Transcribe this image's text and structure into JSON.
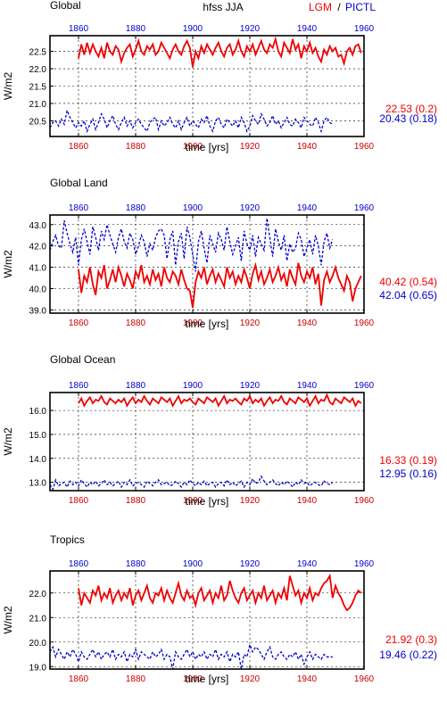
{
  "header": {
    "title": "hfss JJA",
    "legend_lgm": "LGM",
    "legend_sep": "/",
    "legend_pictl": "PICTL"
  },
  "colors": {
    "lgm": "#ee0000",
    "pictl": "#0000cc",
    "axis": "#000000",
    "grid": "#000000"
  },
  "chart_data": [
    {
      "type": "line",
      "panel_title": "Global",
      "ylabel": "W/m2",
      "xlabel": "time [yrs]",
      "xlim": [
        1850,
        1960
      ],
      "xticks": [
        1860,
        1880,
        1900,
        1920,
        1940,
        1960
      ],
      "top_xticks": [
        1860,
        1880,
        1900,
        1920,
        1940,
        1960
      ],
      "ylim": [
        20.05,
        22.95
      ],
      "yticks": [
        "20.5",
        "21.0",
        "21.5",
        "22.0",
        "22.5"
      ],
      "grid": true,
      "series": [
        {
          "name": "LGM",
          "color": "#ee0000",
          "dash": "none",
          "x_start": 1860,
          "stats": "22.53 (0.2)",
          "values": [
            22.3,
            22.7,
            22.4,
            22.75,
            22.45,
            22.7,
            22.5,
            22.35,
            22.6,
            22.3,
            22.75,
            22.5,
            22.4,
            22.65,
            22.55,
            22.2,
            22.45,
            22.6,
            22.7,
            22.35,
            22.55,
            22.8,
            22.5,
            22.4,
            22.65,
            22.55,
            22.7,
            22.4,
            22.5,
            22.75,
            22.6,
            22.45,
            22.3,
            22.55,
            22.7,
            22.5,
            22.4,
            22.65,
            22.8,
            22.6,
            22.05,
            22.5,
            22.3,
            22.65,
            22.45,
            22.7,
            22.55,
            22.4,
            22.6,
            22.75,
            22.5,
            22.35,
            22.6,
            22.7,
            22.4,
            22.55,
            22.8,
            22.5,
            22.35,
            22.65,
            22.5,
            22.7,
            22.4,
            22.6,
            22.8,
            22.55,
            22.45,
            22.7,
            22.6,
            22.85,
            22.5,
            22.35,
            22.75,
            22.6,
            22.45,
            22.85,
            22.55,
            22.7,
            22.3,
            22.65,
            22.5,
            22.75,
            22.45,
            22.6,
            22.35,
            22.2,
            22.55,
            22.4,
            22.65,
            22.5,
            22.6,
            22.35,
            22.4,
            22.15,
            22.5,
            22.6,
            22.4,
            22.65,
            22.7,
            22.45
          ]
        },
        {
          "name": "PICTL",
          "color": "#0000cc",
          "dash": "3,2",
          "x_start": 1850,
          "stats": "20.43 (0.18)",
          "values": [
            20.3,
            20.45,
            20.5,
            20.35,
            20.55,
            20.4,
            20.8,
            20.6,
            20.45,
            20.3,
            20.45,
            20.35,
            20.5,
            20.2,
            20.4,
            20.55,
            20.25,
            20.45,
            20.7,
            20.55,
            20.3,
            20.5,
            20.65,
            20.4,
            20.25,
            20.45,
            20.6,
            20.35,
            20.5,
            20.3,
            20.45,
            20.55,
            20.4,
            20.3,
            20.2,
            20.45,
            20.55,
            20.6,
            20.25,
            20.5,
            20.35,
            20.45,
            20.6,
            20.4,
            20.3,
            20.5,
            20.25,
            20.45,
            20.6,
            20.35,
            20.5,
            20.4,
            20.3,
            20.55,
            20.45,
            20.65,
            20.35,
            20.2,
            20.5,
            20.6,
            20.4,
            20.3,
            20.55,
            20.45,
            20.35,
            20.5,
            20.3,
            20.6,
            20.45,
            20.2,
            20.35,
            20.65,
            20.5,
            20.4,
            20.7,
            20.55,
            20.35,
            20.45,
            20.65,
            20.4,
            20.5,
            20.3,
            20.45,
            20.6,
            20.4,
            20.35,
            20.55,
            20.45,
            20.3,
            20.6,
            20.5,
            20.4,
            20.35,
            20.6,
            20.45,
            20.2,
            20.5,
            20.6,
            20.45,
            20.4
          ]
        }
      ]
    },
    {
      "type": "line",
      "panel_title": "Global Land",
      "ylabel": "W/m2",
      "xlabel": "time [yrs]",
      "xlim": [
        1850,
        1960
      ],
      "xticks": [
        1860,
        1880,
        1900,
        1920,
        1940,
        1960
      ],
      "top_xticks": [
        1860,
        1880,
        1900,
        1920,
        1940,
        1960
      ],
      "ylim": [
        38.85,
        43.45
      ],
      "yticks": [
        "39.0",
        "40.0",
        "41.0",
        "42.0",
        "43.0"
      ],
      "grid": true,
      "series": [
        {
          "name": "LGM",
          "color": "#ee0000",
          "dash": "none",
          "x_start": 1860,
          "stats": "40.42 (0.54)",
          "values": [
            40.9,
            39.8,
            40.6,
            40.3,
            41.0,
            40.2,
            39.7,
            40.8,
            40.5,
            41.1,
            40.0,
            40.4,
            40.9,
            40.3,
            41.0,
            40.6,
            40.1,
            40.7,
            40.4,
            40.0,
            40.8,
            40.5,
            41.1,
            40.3,
            40.6,
            40.2,
            40.9,
            40.4,
            40.7,
            40.1,
            41.0,
            40.5,
            40.3,
            40.8,
            40.6,
            40.2,
            40.9,
            40.4,
            40.0,
            39.9,
            39.1,
            40.3,
            40.8,
            40.5,
            41.0,
            40.2,
            40.6,
            40.9,
            40.3,
            40.7,
            40.4,
            40.1,
            41.0,
            40.5,
            40.8,
            40.2,
            40.6,
            40.3,
            40.9,
            40.5,
            40.0,
            40.7,
            41.1,
            40.4,
            40.8,
            40.2,
            40.5,
            40.9,
            40.3,
            40.6,
            41.0,
            40.4,
            40.7,
            40.1,
            40.9,
            40.5,
            40.2,
            41.2,
            40.6,
            40.3,
            40.8,
            40.5,
            41.0,
            40.2,
            40.7,
            39.2,
            40.4,
            40.8,
            40.3,
            40.6,
            41.0,
            40.5,
            40.2,
            39.9,
            40.6,
            40.3,
            39.4,
            40.0,
            40.3,
            40.6
          ]
        },
        {
          "name": "PICTL",
          "color": "#0000cc",
          "dash": "3,2",
          "x_start": 1850,
          "stats": "42.04 (0.65)",
          "values": [
            41.8,
            42.2,
            42.5,
            42.0,
            41.9,
            43.2,
            42.6,
            42.1,
            41.7,
            42.4,
            41.1,
            42.3,
            42.8,
            42.2,
            41.6,
            42.9,
            42.4,
            41.8,
            42.7,
            42.3,
            43.0,
            42.5,
            42.1,
            41.7,
            42.4,
            42.8,
            42.2,
            41.9,
            42.6,
            42.3,
            41.6,
            42.0,
            42.5,
            42.2,
            41.5,
            42.1,
            41.8,
            42.4,
            42.7,
            42.8,
            42.5,
            41.4,
            42.3,
            42.7,
            41.1,
            42.2,
            42.6,
            41.4,
            42.9,
            42.4,
            41.6,
            40.8,
            42.2,
            42.7,
            41.9,
            41.2,
            42.5,
            42.1,
            41.7,
            42.6,
            42.3,
            41.8,
            42.9,
            42.2,
            41.6,
            42.0,
            42.4,
            41.3,
            42.7,
            42.1,
            41.8,
            42.5,
            41.5,
            42.4,
            42.1,
            41.8,
            43.3,
            42.4,
            41.5,
            42.8,
            42.2,
            41.8,
            42.5,
            41.3,
            42.1,
            41.7,
            41.9,
            42.6,
            42.3,
            41.5,
            41.9,
            42.3,
            41.6,
            42.5,
            42.0,
            41.1,
            42.2,
            42.6,
            41.9,
            42.3
          ]
        }
      ]
    },
    {
      "type": "line",
      "panel_title": "Global Ocean",
      "ylabel": "W/m2",
      "xlabel": "time [yrs]",
      "xlim": [
        1850,
        1960
      ],
      "xticks": [
        1860,
        1880,
        1900,
        1920,
        1940,
        1960
      ],
      "top_xticks": [
        1860,
        1880,
        1900,
        1920,
        1940,
        1960
      ],
      "ylim": [
        12.65,
        16.75
      ],
      "yticks": [
        "13.0",
        "14.0",
        "15.0",
        "16.0"
      ],
      "grid": true,
      "series": [
        {
          "name": "LGM",
          "color": "#ee0000",
          "dash": "none",
          "x_start": 1860,
          "stats": "16.33 (0.19)",
          "values": [
            16.3,
            16.5,
            16.2,
            16.4,
            16.55,
            16.3,
            16.45,
            16.4,
            16.6,
            16.35,
            16.25,
            16.5,
            16.4,
            16.3,
            16.45,
            16.35,
            16.5,
            16.2,
            16.4,
            16.55,
            16.3,
            16.45,
            16.35,
            16.6,
            16.4,
            16.25,
            16.5,
            16.4,
            16.3,
            16.55,
            16.45,
            16.35,
            16.5,
            16.2,
            16.4,
            16.6,
            16.3,
            16.45,
            16.4,
            16.5,
            16.35,
            16.25,
            16.5,
            16.4,
            16.3,
            16.55,
            16.45,
            16.35,
            16.5,
            16.2,
            16.4,
            16.6,
            16.3,
            16.45,
            16.4,
            16.5,
            16.35,
            16.25,
            16.5,
            16.4,
            16.6,
            16.3,
            16.45,
            16.35,
            16.5,
            16.2,
            16.4,
            16.55,
            16.3,
            16.45,
            16.4,
            16.6,
            16.35,
            16.25,
            16.5,
            16.4,
            16.3,
            16.55,
            16.45,
            16.35,
            16.5,
            16.2,
            16.4,
            16.6,
            16.3,
            16.45,
            16.4,
            16.65,
            16.35,
            16.25,
            16.5,
            16.4,
            16.3,
            16.55,
            16.45,
            16.35,
            16.5,
            16.2,
            16.4,
            16.3
          ]
        },
        {
          "name": "PICTL",
          "color": "#0000cc",
          "dash": "3,2",
          "x_start": 1850,
          "stats": "12.95 (0.16)",
          "values": [
            12.9,
            12.7,
            13.1,
            12.85,
            12.95,
            13.0,
            12.8,
            13.05,
            12.9,
            13.0,
            12.85,
            13.1,
            12.95,
            12.8,
            13.0,
            12.9,
            13.05,
            12.85,
            12.95,
            13.1,
            12.9,
            13.0,
            12.85,
            12.95,
            13.05,
            12.8,
            13.0,
            12.9,
            13.1,
            12.85,
            12.95,
            13.0,
            12.9,
            12.8,
            13.05,
            12.95,
            12.85,
            13.0,
            13.1,
            12.9,
            12.95,
            13.0,
            12.85,
            12.9,
            13.05,
            12.95,
            12.8,
            13.0,
            12.9,
            13.1,
            12.95,
            12.85,
            13.0,
            12.9,
            13.05,
            12.85,
            12.95,
            13.0,
            12.8,
            12.95,
            13.0,
            12.85,
            13.1,
            12.9,
            13.0,
            12.85,
            12.95,
            13.05,
            12.8,
            13.0,
            12.9,
            13.15,
            12.95,
            13.0,
            13.25,
            13.05,
            12.9,
            13.0,
            13.1,
            12.95,
            12.85,
            13.0,
            12.9,
            13.05,
            12.95,
            12.8,
            13.0,
            12.9,
            13.1,
            12.95,
            13.0,
            12.85,
            12.95,
            13.0,
            12.9,
            12.85,
            13.05,
            12.95,
            12.9,
            13.0
          ]
        }
      ]
    },
    {
      "type": "line",
      "panel_title": "Tropics",
      "ylabel": "W/m2",
      "xlabel": "time [yrs]",
      "xlim": [
        1850,
        1960
      ],
      "xticks": [
        1860,
        1880,
        1900,
        1920,
        1940,
        1960
      ],
      "top_xticks": [
        1860,
        1880,
        1900,
        1920,
        1940,
        1960
      ],
      "ylim": [
        18.9,
        22.9
      ],
      "yticks": [
        "19.0",
        "20.0",
        "21.0",
        "22.0"
      ],
      "grid": true,
      "series": [
        {
          "name": "LGM",
          "color": "#ee0000",
          "dash": "none",
          "x_start": 1860,
          "stats": "21.92 (0.3)",
          "values": [
            22.2,
            21.5,
            22.0,
            21.8,
            21.6,
            22.1,
            21.9,
            22.3,
            21.7,
            22.0,
            21.8,
            22.2,
            21.6,
            21.9,
            22.1,
            21.7,
            22.0,
            21.8,
            22.2,
            21.5,
            21.9,
            22.1,
            21.7,
            22.0,
            22.3,
            21.8,
            21.6,
            22.0,
            21.9,
            22.2,
            21.7,
            22.1,
            21.8,
            21.6,
            22.0,
            22.4,
            21.9,
            21.7,
            22.1,
            21.8,
            21.9,
            21.5,
            22.0,
            22.2,
            21.7,
            21.9,
            22.1,
            21.6,
            22.0,
            21.8,
            22.3,
            21.7,
            21.9,
            22.5,
            22.1,
            21.8,
            21.6,
            22.0,
            22.2,
            21.7,
            21.9,
            22.1,
            21.6,
            22.0,
            21.8,
            22.3,
            21.7,
            21.9,
            22.1,
            21.6,
            22.0,
            21.8,
            22.2,
            21.7,
            22.7,
            22.3,
            21.9,
            22.1,
            21.6,
            22.0,
            21.8,
            22.2,
            21.7,
            22.0,
            21.9,
            22.2,
            22.4,
            22.5,
            22.7,
            21.8,
            22.3,
            22.0,
            21.8,
            21.5,
            21.3,
            21.4,
            21.6,
            21.9,
            22.1,
            22.0
          ]
        },
        {
          "name": "PICTL",
          "color": "#0000cc",
          "dash": "3,2",
          "x_start": 1850,
          "stats": "19.46 (0.22)",
          "values": [
            19.6,
            19.8,
            19.4,
            19.7,
            19.5,
            19.3,
            19.6,
            19.4,
            19.7,
            19.5,
            19.2,
            19.6,
            19.4,
            19.3,
            19.5,
            19.7,
            19.4,
            19.6,
            19.3,
            19.5,
            19.6,
            19.4,
            19.7,
            19.3,
            19.5,
            19.4,
            19.6,
            19.2,
            19.5,
            19.4,
            19.7,
            19.3,
            19.6,
            19.5,
            19.4,
            19.3,
            19.6,
            19.4,
            19.5,
            19.7,
            19.3,
            19.5,
            19.4,
            18.9,
            19.6,
            19.4,
            19.3,
            19.5,
            19.7,
            19.4,
            19.6,
            19.3,
            19.5,
            19.4,
            19.6,
            19.3,
            19.5,
            19.4,
            19.7,
            19.3,
            19.5,
            19.4,
            19.6,
            19.2,
            19.5,
            19.4,
            19.6,
            18.9,
            19.5,
            19.4,
            19.9,
            19.6,
            19.8,
            19.7,
            19.5,
            19.3,
            19.6,
            19.8,
            19.4,
            19.3,
            19.5,
            19.6,
            19.4,
            19.3,
            19.5,
            19.4,
            19.6,
            19.3,
            19.5,
            19.1,
            19.4,
            19.6,
            19.3,
            19.5,
            19.4,
            19.3,
            19.5,
            19.4,
            19.4,
            19.4
          ]
        }
      ]
    }
  ]
}
